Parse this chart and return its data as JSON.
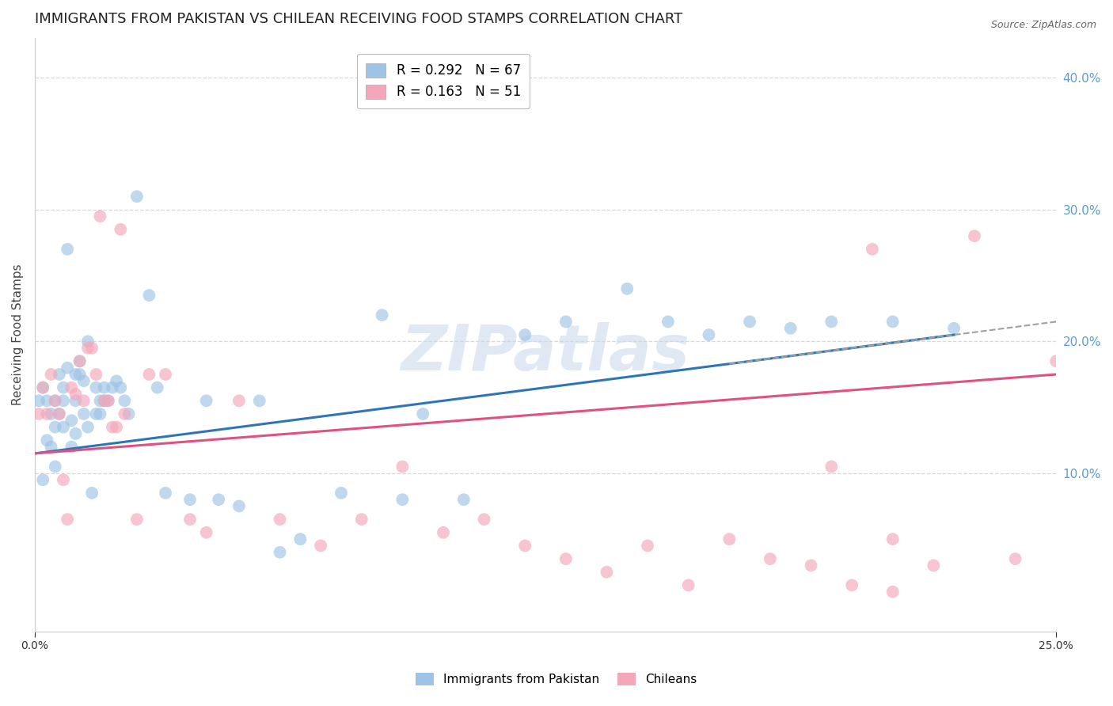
{
  "title": "IMMIGRANTS FROM PAKISTAN VS CHILEAN RECEIVING FOOD STAMPS CORRELATION CHART",
  "source": "Source: ZipAtlas.com",
  "ylabel": "Receiving Food Stamps",
  "ylabel_color": "#444444",
  "right_axis_color": "#5b9bd5",
  "xlim": [
    0.0,
    0.25
  ],
  "ylim": [
    -0.02,
    0.43
  ],
  "pakistan_color": "#9dc3e6",
  "chilean_color": "#f4a7b9",
  "legend_pakistan_label": "R = 0.292   N = 67",
  "legend_chilean_label": "R = 0.163   N = 51",
  "trend_pakistan_color": "#2e75b6",
  "trend_chilean_color": "#e05080",
  "trend_pakistan_dashed_color": "#a0a0a0",
  "background_color": "#ffffff",
  "grid_color": "#d8d8d8",
  "watermark": "ZIPatlas",
  "watermark_color": "#c8d8ea",
  "title_fontsize": 13,
  "axis_label_fontsize": 11,
  "tick_fontsize": 10,
  "legend_fontsize": 12,
  "pakistan_x": [
    0.001,
    0.002,
    0.002,
    0.003,
    0.003,
    0.004,
    0.004,
    0.005,
    0.005,
    0.005,
    0.006,
    0.006,
    0.007,
    0.007,
    0.007,
    0.008,
    0.008,
    0.009,
    0.009,
    0.01,
    0.01,
    0.01,
    0.011,
    0.011,
    0.012,
    0.012,
    0.013,
    0.013,
    0.014,
    0.015,
    0.015,
    0.016,
    0.016,
    0.017,
    0.017,
    0.018,
    0.019,
    0.02,
    0.021,
    0.022,
    0.023,
    0.025,
    0.028,
    0.03,
    0.032,
    0.038,
    0.042,
    0.045,
    0.05,
    0.055,
    0.06,
    0.065,
    0.075,
    0.085,
    0.09,
    0.095,
    0.105,
    0.12,
    0.13,
    0.145,
    0.155,
    0.165,
    0.175,
    0.185,
    0.195,
    0.21,
    0.225
  ],
  "pakistan_y": [
    0.155,
    0.165,
    0.095,
    0.125,
    0.155,
    0.145,
    0.12,
    0.155,
    0.135,
    0.105,
    0.175,
    0.145,
    0.165,
    0.155,
    0.135,
    0.18,
    0.27,
    0.14,
    0.12,
    0.155,
    0.175,
    0.13,
    0.185,
    0.175,
    0.17,
    0.145,
    0.2,
    0.135,
    0.085,
    0.145,
    0.165,
    0.155,
    0.145,
    0.165,
    0.155,
    0.155,
    0.165,
    0.17,
    0.165,
    0.155,
    0.145,
    0.31,
    0.235,
    0.165,
    0.085,
    0.08,
    0.155,
    0.08,
    0.075,
    0.155,
    0.04,
    0.05,
    0.085,
    0.22,
    0.08,
    0.145,
    0.08,
    0.205,
    0.215,
    0.24,
    0.215,
    0.205,
    0.215,
    0.21,
    0.215,
    0.215,
    0.21
  ],
  "chilean_x": [
    0.001,
    0.002,
    0.003,
    0.004,
    0.005,
    0.006,
    0.007,
    0.008,
    0.009,
    0.01,
    0.011,
    0.012,
    0.013,
    0.014,
    0.015,
    0.016,
    0.017,
    0.018,
    0.019,
    0.02,
    0.021,
    0.022,
    0.025,
    0.028,
    0.032,
    0.038,
    0.042,
    0.05,
    0.06,
    0.07,
    0.08,
    0.09,
    0.1,
    0.11,
    0.12,
    0.13,
    0.14,
    0.15,
    0.16,
    0.17,
    0.18,
    0.19,
    0.2,
    0.21,
    0.22,
    0.23,
    0.24,
    0.25,
    0.205,
    0.195,
    0.21
  ],
  "chilean_y": [
    0.145,
    0.165,
    0.145,
    0.175,
    0.155,
    0.145,
    0.095,
    0.065,
    0.165,
    0.16,
    0.185,
    0.155,
    0.195,
    0.195,
    0.175,
    0.295,
    0.155,
    0.155,
    0.135,
    0.135,
    0.285,
    0.145,
    0.065,
    0.175,
    0.175,
    0.065,
    0.055,
    0.155,
    0.065,
    0.045,
    0.065,
    0.105,
    0.055,
    0.065,
    0.045,
    0.035,
    0.025,
    0.045,
    0.015,
    0.05,
    0.035,
    0.03,
    0.015,
    0.05,
    0.03,
    0.28,
    0.035,
    0.185,
    0.27,
    0.105,
    0.01
  ],
  "trend_pk_x0": 0.0,
  "trend_pk_y0": 0.115,
  "trend_pk_x1": 0.225,
  "trend_pk_y1": 0.205,
  "trend_pk_dash_x0": 0.17,
  "trend_pk_dash_x1": 0.25,
  "trend_ch_x0": 0.0,
  "trend_ch_y0": 0.115,
  "trend_ch_x1": 0.25,
  "trend_ch_y1": 0.175
}
